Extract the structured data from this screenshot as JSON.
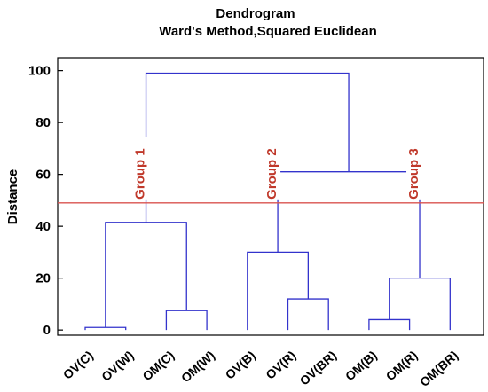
{
  "chart_data": {
    "type": "dendrogram",
    "title": "Dendrogram",
    "subtitle": "Ward's Method,Squared Euclidean",
    "ylabel": "Distance",
    "xlabel": "",
    "ylim": [
      -2,
      105
    ],
    "yticks": [
      0,
      20,
      40,
      60,
      80,
      100
    ],
    "grid": false,
    "leaves": [
      "OV(C)",
      "OV(W)",
      "OM(C)",
      "OM(W)",
      "OV(B)",
      "OV(R)",
      "OV(BR)",
      "OM(B)",
      "OM(R)",
      "OM(BR)"
    ],
    "merges": [
      {
        "left": 0,
        "right": 1,
        "height": 1
      },
      {
        "left": 2,
        "right": 3,
        "height": 7.5
      },
      {
        "left": 7,
        "right": 8,
        "height": 4
      },
      {
        "left": 5,
        "right": 6,
        "height": 12
      },
      {
        "left": 10,
        "right": 11,
        "height": 41.5
      },
      {
        "left": 4,
        "right": 13,
        "height": 30
      },
      {
        "left": 12,
        "right": 9,
        "height": 20
      },
      {
        "left": 15,
        "right": 16,
        "height": 61
      },
      {
        "left": 14,
        "right": 17,
        "height": 99
      }
    ],
    "cut_line": {
      "value": 49,
      "color": "#d9534f"
    },
    "groups": [
      {
        "label": "Group 1",
        "members": [
          0,
          1,
          2,
          3
        ]
      },
      {
        "label": "Group 2",
        "members": [
          4,
          5,
          6
        ]
      },
      {
        "label": "Group 3",
        "members": [
          7,
          8,
          9
        ]
      }
    ],
    "colors": {
      "links": "#3333cc",
      "group_label": "#c0392b",
      "axis": "#000000"
    }
  }
}
